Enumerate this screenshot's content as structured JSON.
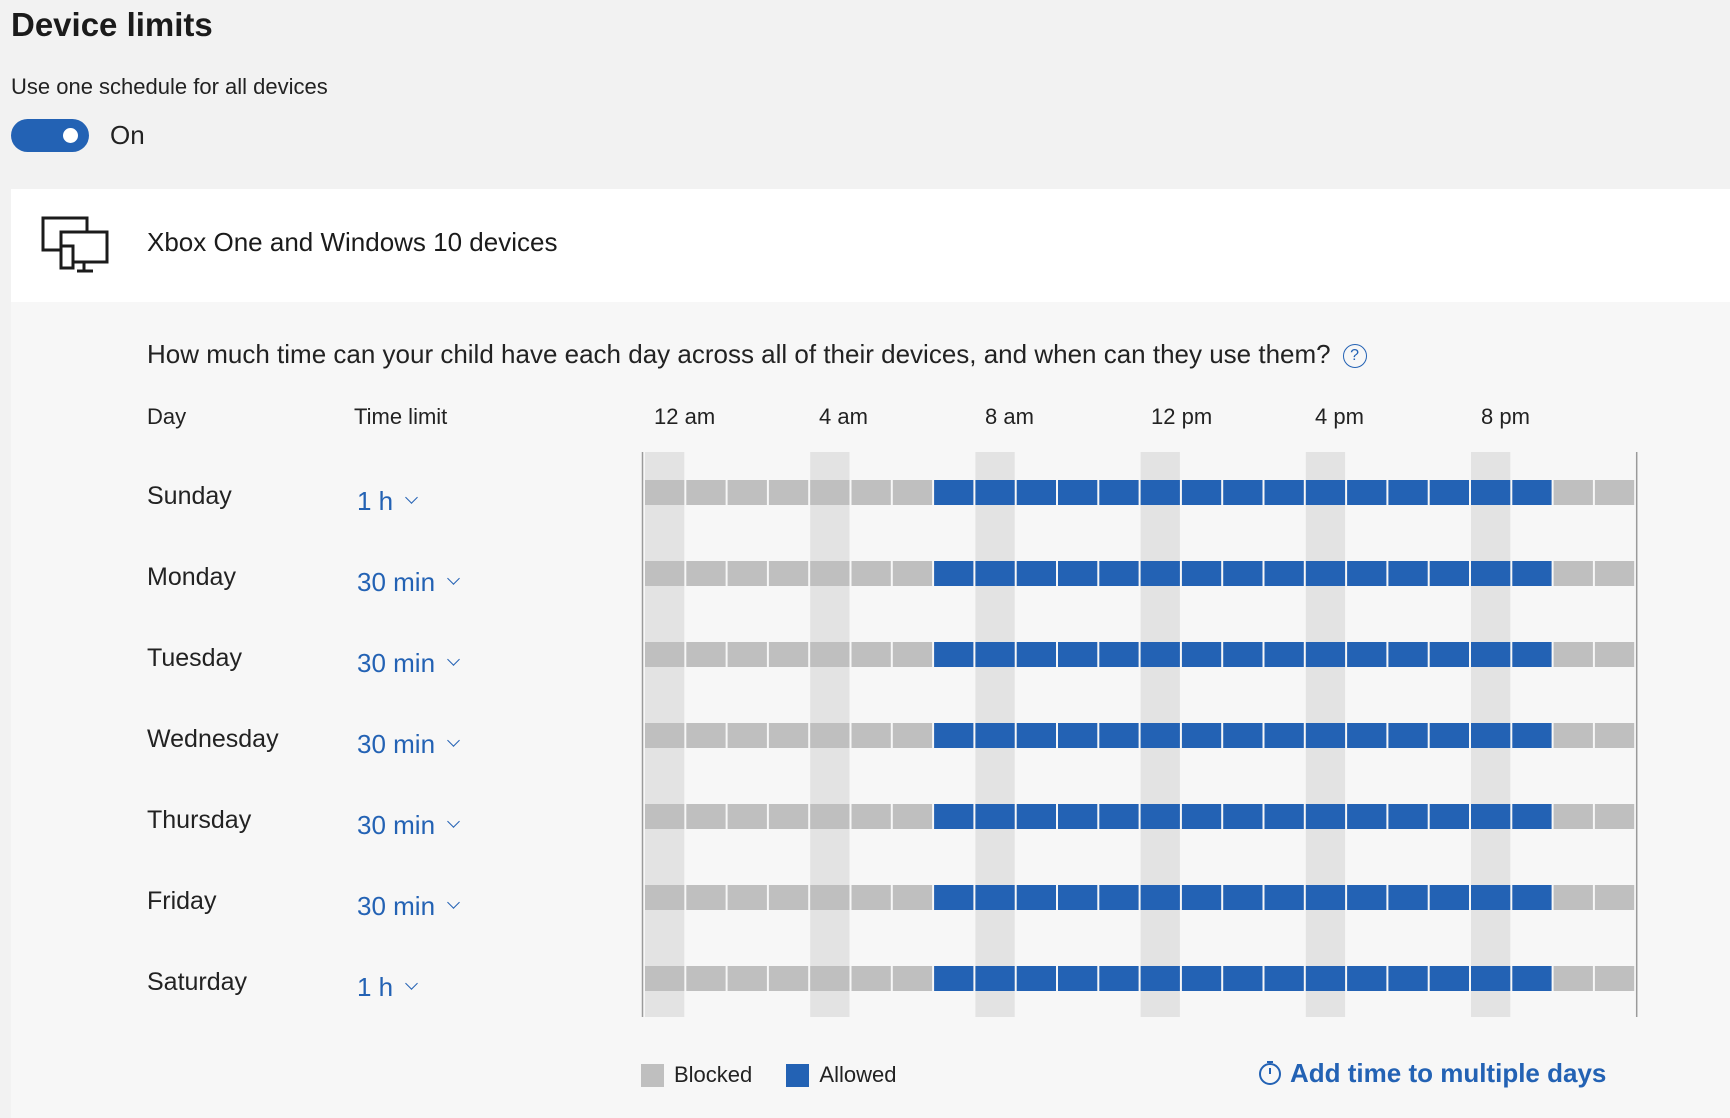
{
  "page": {
    "title": "Device limits",
    "toggle_label": "Use one schedule for all devices",
    "toggle_state": "On",
    "toggle_on": true
  },
  "device_section": {
    "icon": "devices-icon",
    "title": "Xbox One and Windows 10 devices"
  },
  "schedule": {
    "question": "How much time can your child have each day across all of their devices, and when can they use them?",
    "help_icon": "help-circle-icon",
    "columns": {
      "day": "Day",
      "time_limit": "Time limit"
    },
    "hour_labels": [
      "12 am",
      "4 am",
      "8 am",
      "12 pm",
      "4 pm",
      "8 pm"
    ],
    "block_hours": 1,
    "days": [
      {
        "name": "Sunday",
        "limit": "1 h",
        "allowed_from": 7,
        "allowed_to": 22
      },
      {
        "name": "Monday",
        "limit": "30 min",
        "allowed_from": 7,
        "allowed_to": 22
      },
      {
        "name": "Tuesday",
        "limit": "30 min",
        "allowed_from": 7,
        "allowed_to": 22
      },
      {
        "name": "Wednesday",
        "limit": "30 min",
        "allowed_from": 7,
        "allowed_to": 22
      },
      {
        "name": "Thursday",
        "limit": "30 min",
        "allowed_from": 7,
        "allowed_to": 22
      },
      {
        "name": "Friday",
        "limit": "30 min",
        "allowed_from": 7,
        "allowed_to": 22
      },
      {
        "name": "Saturday",
        "limit": "1 h",
        "allowed_from": 7,
        "allowed_to": 22
      }
    ],
    "legend": {
      "blocked": "Blocked",
      "allowed": "Allowed"
    },
    "add_time_label": "Add time to multiple days",
    "add_time_icon": "timer-icon"
  },
  "colors": {
    "accent": "#2362b4",
    "blocked": "#bfbfbf",
    "allowed": "#2362b4",
    "stripe": "#e3e3e3"
  }
}
